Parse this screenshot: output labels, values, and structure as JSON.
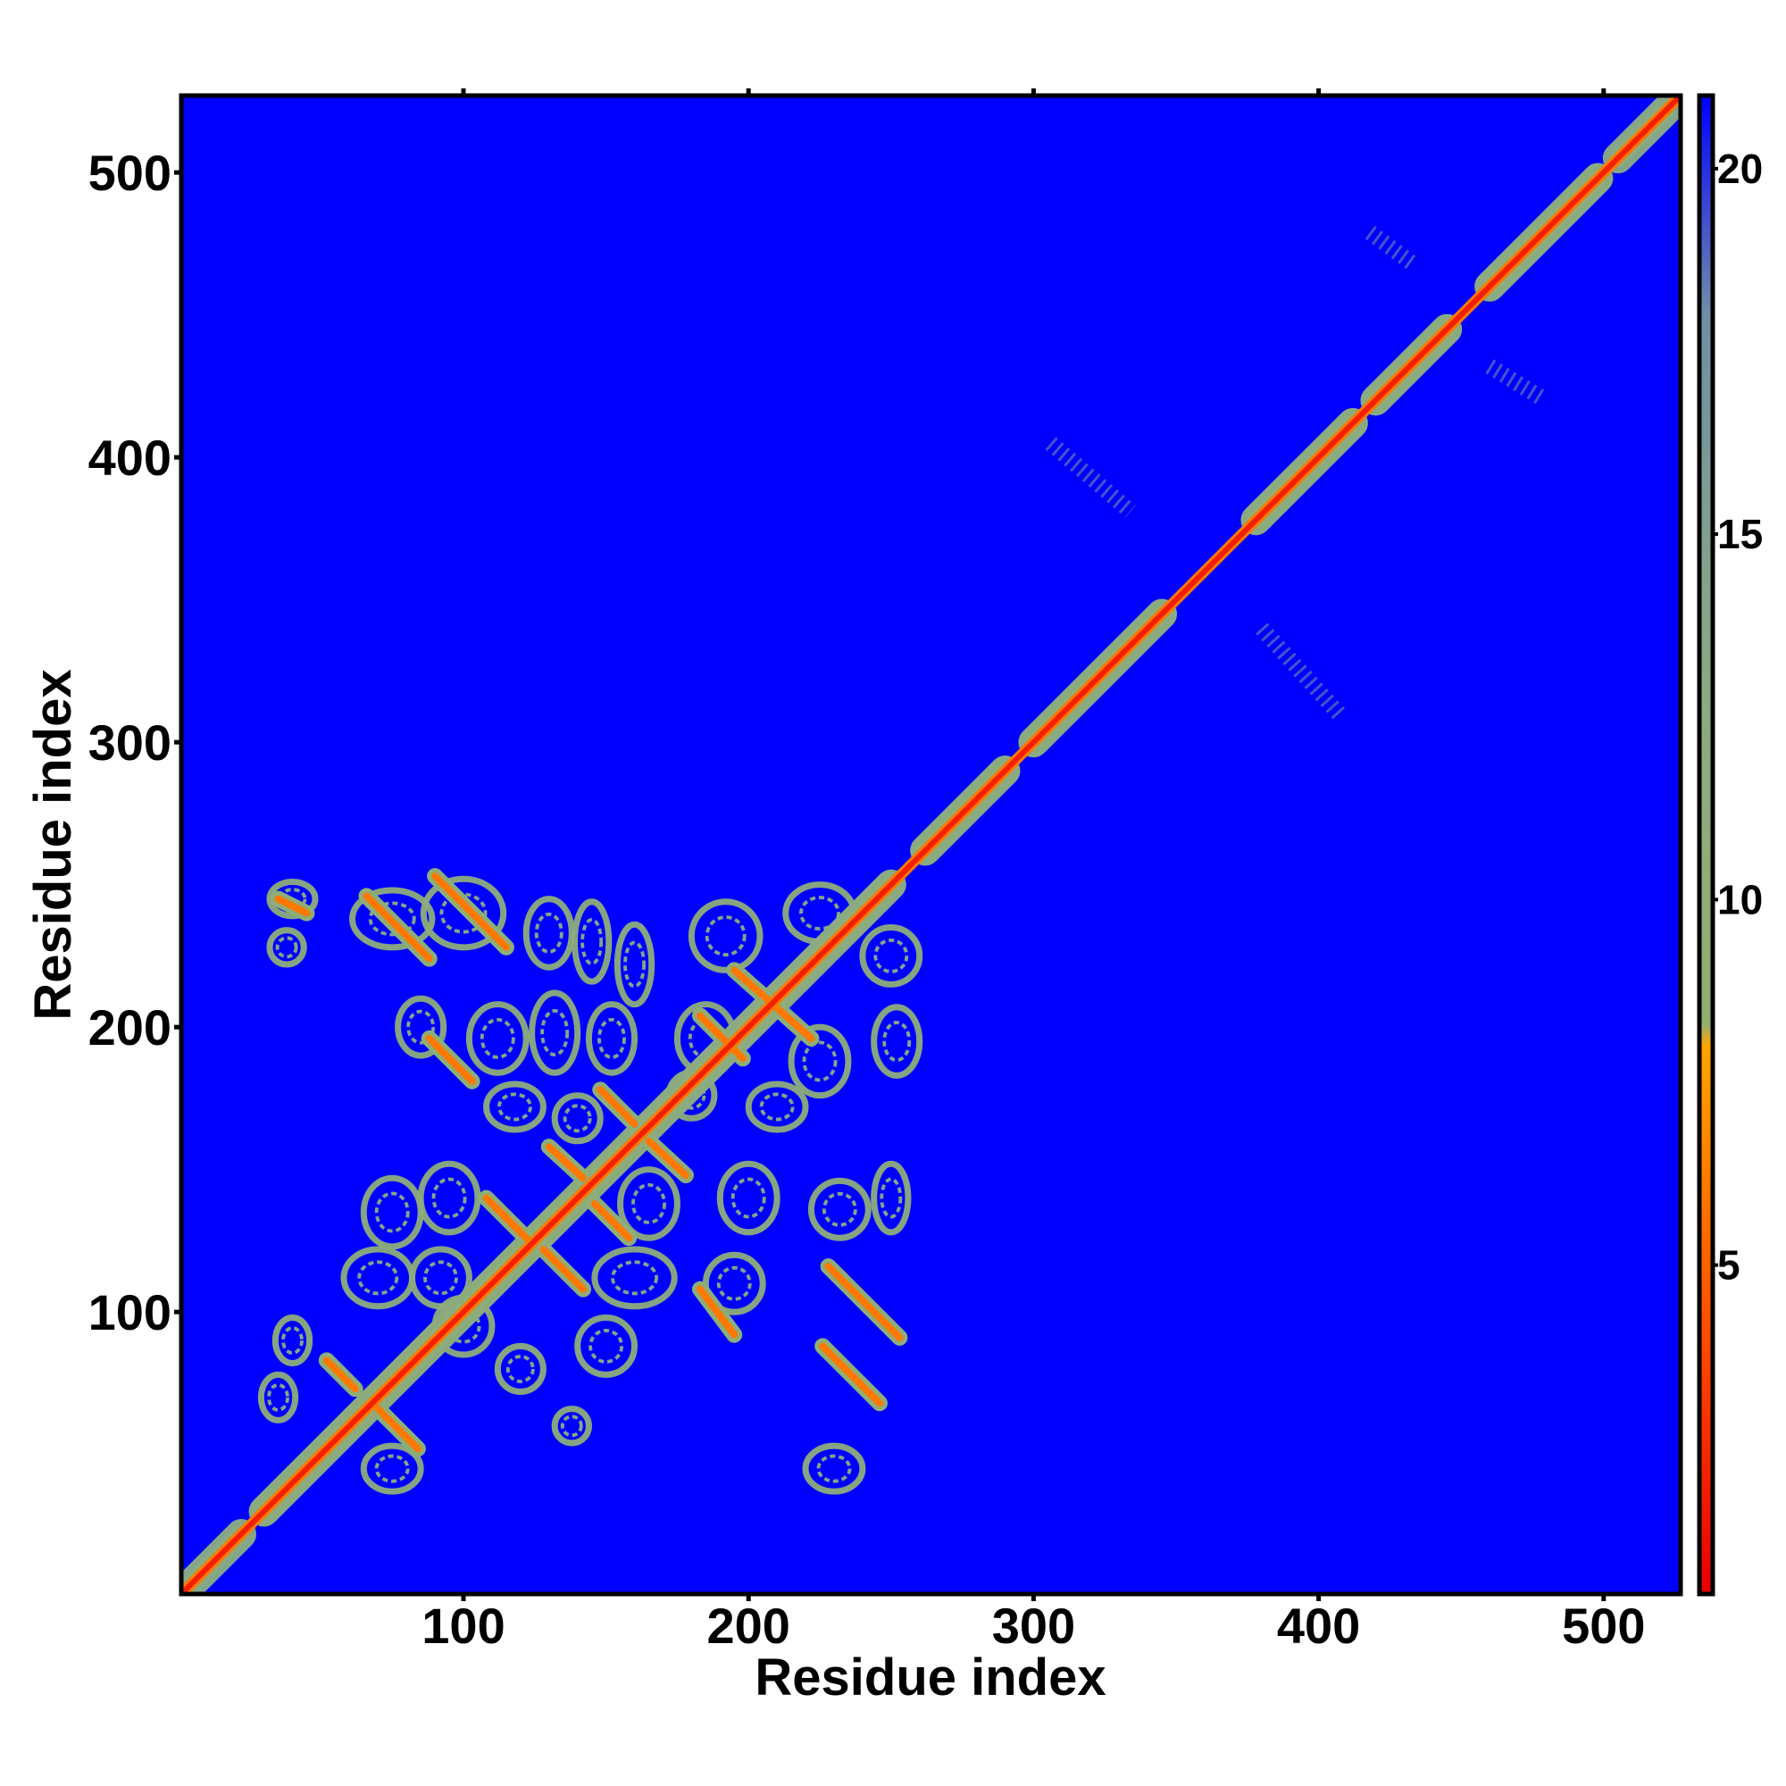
{
  "chart_data": {
    "type": "heatmap",
    "title": "",
    "xlabel": "Residue index",
    "ylabel": "Residue index",
    "xlim": [
      1,
      527
    ],
    "ylim": [
      1,
      527
    ],
    "xticks": [
      100,
      200,
      300,
      400,
      500
    ],
    "yticks": [
      100,
      200,
      300,
      400,
      500
    ],
    "xtick_labels": [
      "100",
      "200",
      "300",
      "400",
      "500"
    ],
    "ytick_labels": [
      "100",
      "200",
      "300",
      "400",
      "500"
    ],
    "grid": false,
    "value_description": "pairwise residue distance map, symmetric about the diagonal",
    "colorbar": {
      "range": [
        0.5,
        21
      ],
      "ticks": [
        5,
        10,
        15,
        20
      ],
      "tick_labels": [
        "5",
        "10",
        "15",
        "20"
      ],
      "placement": "right",
      "stops": [
        {
          "value": 0.5,
          "color": "#e60000"
        },
        {
          "value": 4,
          "color": "#ff4a00"
        },
        {
          "value": 8,
          "color": "#ffa500"
        },
        {
          "value": 8.3,
          "color": "#90b070"
        },
        {
          "value": 13,
          "color": "#8aaa82"
        },
        {
          "value": 18,
          "color": "#6f8fa6"
        },
        {
          "value": 21,
          "color": "#0000ff"
        }
      ]
    },
    "background_value": 21,
    "diagonal": {
      "from": 1,
      "to": 527,
      "value": 2
    },
    "diagonal_segments": [
      {
        "from": 2,
        "to": 22,
        "value": 12
      },
      {
        "from": 30,
        "to": 62,
        "value": 11
      },
      {
        "from": 62,
        "to": 100,
        "value": 10
      },
      {
        "from": 100,
        "to": 160,
        "value": 10
      },
      {
        "from": 160,
        "to": 250,
        "value": 11
      },
      {
        "from": 262,
        "to": 290,
        "value": 11
      },
      {
        "from": 300,
        "to": 345,
        "value": 11
      },
      {
        "from": 378,
        "to": 412,
        "value": 11
      },
      {
        "from": 420,
        "to": 445,
        "value": 11
      },
      {
        "from": 460,
        "to": 498,
        "value": 11
      },
      {
        "from": 505,
        "to": 522,
        "value": 12
      }
    ],
    "contact_lines": [
      {
        "x1": 90,
        "y1": 253,
        "x2": 115,
        "y2": 228,
        "value": 6
      },
      {
        "x1": 66,
        "y1": 246,
        "x2": 88,
        "y2": 224,
        "value": 6
      },
      {
        "x1": 88,
        "y1": 196,
        "x2": 103,
        "y2": 181,
        "value": 6
      },
      {
        "x1": 195,
        "y1": 220,
        "x2": 222,
        "y2": 196,
        "value": 6
      },
      {
        "x1": 183,
        "y1": 204,
        "x2": 198,
        "y2": 189,
        "value": 6
      },
      {
        "x1": 148,
        "y1": 178,
        "x2": 160,
        "y2": 166,
        "value": 6
      },
      {
        "x1": 165,
        "y1": 160,
        "x2": 178,
        "y2": 148,
        "value": 6
      },
      {
        "x1": 130,
        "y1": 158,
        "x2": 142,
        "y2": 147,
        "value": 6
      },
      {
        "x1": 146,
        "y1": 138,
        "x2": 158,
        "y2": 126,
        "value": 6
      },
      {
        "x1": 108,
        "y1": 140,
        "x2": 123,
        "y2": 125,
        "value": 6
      },
      {
        "x1": 128,
        "y1": 122,
        "x2": 142,
        "y2": 108,
        "value": 6
      },
      {
        "x1": 183,
        "y1": 108,
        "x2": 195,
        "y2": 92,
        "value": 6
      },
      {
        "x1": 228,
        "y1": 116,
        "x2": 253,
        "y2": 91,
        "value": 6
      },
      {
        "x1": 226,
        "y1": 88,
        "x2": 246,
        "y2": 68,
        "value": 6
      },
      {
        "x1": 52,
        "y1": 83,
        "x2": 62,
        "y2": 73,
        "value": 6
      },
      {
        "x1": 70,
        "y1": 66,
        "x2": 84,
        "y2": 52,
        "value": 6
      },
      {
        "x1": 35,
        "y1": 245,
        "x2": 45,
        "y2": 240,
        "value": 6
      }
    ],
    "contact_blobs": [
      {
        "x": 40,
        "y": 245,
        "rx": 8,
        "ry": 6
      },
      {
        "x": 38,
        "y": 228,
        "rx": 6,
        "ry": 6
      },
      {
        "x": 75,
        "y": 238,
        "rx": 14,
        "ry": 10
      },
      {
        "x": 100,
        "y": 240,
        "rx": 14,
        "ry": 12
      },
      {
        "x": 130,
        "y": 233,
        "rx": 8,
        "ry": 12
      },
      {
        "x": 145,
        "y": 230,
        "rx": 6,
        "ry": 14
      },
      {
        "x": 160,
        "y": 222,
        "rx": 6,
        "ry": 14
      },
      {
        "x": 192,
        "y": 232,
        "rx": 12,
        "ry": 12
      },
      {
        "x": 225,
        "y": 240,
        "rx": 12,
        "ry": 10
      },
      {
        "x": 250,
        "y": 225,
        "rx": 10,
        "ry": 10
      },
      {
        "x": 85,
        "y": 200,
        "rx": 8,
        "ry": 10
      },
      {
        "x": 112,
        "y": 196,
        "rx": 10,
        "ry": 12
      },
      {
        "x": 132,
        "y": 198,
        "rx": 8,
        "ry": 14
      },
      {
        "x": 152,
        "y": 196,
        "rx": 8,
        "ry": 12
      },
      {
        "x": 185,
        "y": 196,
        "rx": 10,
        "ry": 12
      },
      {
        "x": 225,
        "y": 188,
        "rx": 10,
        "ry": 12
      },
      {
        "x": 252,
        "y": 195,
        "rx": 8,
        "ry": 12
      },
      {
        "x": 118,
        "y": 172,
        "rx": 10,
        "ry": 8
      },
      {
        "x": 140,
        "y": 168,
        "rx": 8,
        "ry": 8
      },
      {
        "x": 180,
        "y": 176,
        "rx": 8,
        "ry": 8
      },
      {
        "x": 210,
        "y": 172,
        "rx": 10,
        "ry": 8
      },
      {
        "x": 75,
        "y": 135,
        "rx": 10,
        "ry": 12
      },
      {
        "x": 95,
        "y": 140,
        "rx": 10,
        "ry": 12
      },
      {
        "x": 165,
        "y": 138,
        "rx": 10,
        "ry": 12
      },
      {
        "x": 200,
        "y": 140,
        "rx": 10,
        "ry": 12
      },
      {
        "x": 232,
        "y": 136,
        "rx": 10,
        "ry": 10
      },
      {
        "x": 250,
        "y": 140,
        "rx": 6,
        "ry": 12
      },
      {
        "x": 70,
        "y": 112,
        "rx": 12,
        "ry": 10
      },
      {
        "x": 92,
        "y": 112,
        "rx": 10,
        "ry": 10
      },
      {
        "x": 160,
        "y": 112,
        "rx": 14,
        "ry": 10
      },
      {
        "x": 195,
        "y": 110,
        "rx": 10,
        "ry": 10
      },
      {
        "x": 150,
        "y": 88,
        "rx": 10,
        "ry": 10
      },
      {
        "x": 120,
        "y": 80,
        "rx": 8,
        "ry": 8
      },
      {
        "x": 40,
        "y": 90,
        "rx": 6,
        "ry": 8
      },
      {
        "x": 35,
        "y": 70,
        "rx": 6,
        "ry": 8
      },
      {
        "x": 75,
        "y": 45,
        "rx": 10,
        "ry": 8
      },
      {
        "x": 230,
        "y": 45,
        "rx": 10,
        "ry": 8
      },
      {
        "x": 100,
        "y": 95,
        "rx": 10,
        "ry": 10
      },
      {
        "x": 138,
        "y": 60,
        "rx": 6,
        "ry": 6
      }
    ],
    "sparse_contacts": [
      {
        "x1": 418,
        "y1": 479,
        "x2": 433,
        "y2": 468,
        "value": 19
      },
      {
        "x1": 460,
        "y1": 432,
        "x2": 478,
        "y2": 421,
        "value": 19
      },
      {
        "x1": 306,
        "y1": 405,
        "x2": 334,
        "y2": 381,
        "value": 19
      },
      {
        "x1": 380,
        "y1": 340,
        "x2": 408,
        "y2": 309,
        "value": 19
      }
    ]
  }
}
